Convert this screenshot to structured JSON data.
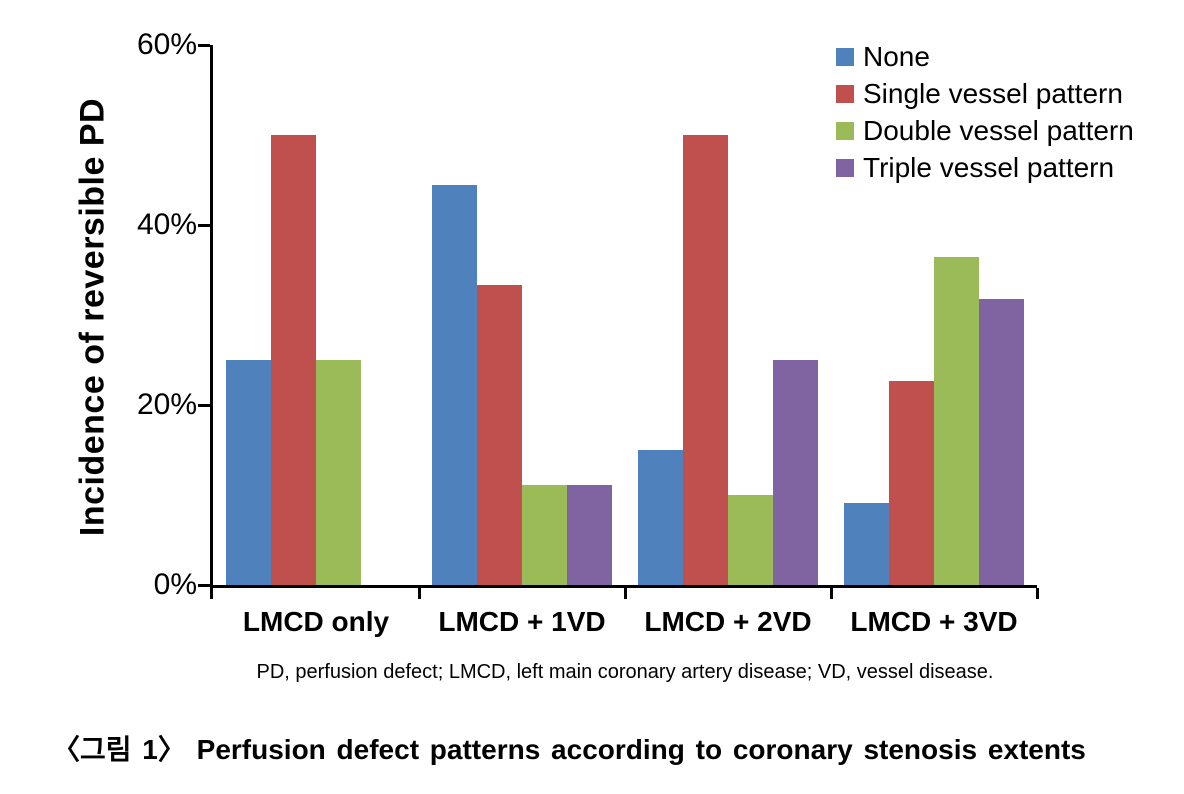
{
  "figure": {
    "footnote": "PD, perfusion defect; LMCD, left main coronary artery disease; VD, vessel disease.",
    "caption": "〈그림 1〉 Perfusion defect patterns according to coronary stenosis extents"
  },
  "chart_data": {
    "type": "bar",
    "title": "",
    "xlabel": "",
    "ylabel": "Incidence of reversible PD",
    "unit": "%",
    "ylim": [
      0,
      60
    ],
    "grid": false,
    "legend_position": "top-right",
    "yticks": [
      {
        "value": 0,
        "label": "0%"
      },
      {
        "value": 20,
        "label": "20%"
      },
      {
        "value": 40,
        "label": "40%"
      },
      {
        "value": 60,
        "label": "60%"
      }
    ],
    "categories": [
      "LMCD only",
      "LMCD + 1VD",
      "LMCD + 2VD",
      "LMCD + 3VD"
    ],
    "series": [
      {
        "name": "None",
        "color": "#4F81BD",
        "values": [
          25,
          44.4,
          15,
          9.1
        ]
      },
      {
        "name": "Single vessel pattern",
        "color": "#C0504D",
        "values": [
          50,
          33.3,
          50,
          22.7
        ]
      },
      {
        "name": "Double vessel pattern",
        "color": "#9BBB59",
        "values": [
          25,
          11.1,
          10,
          36.4
        ]
      },
      {
        "name": "Triple vessel pattern",
        "color": "#8064A2",
        "values": [
          0,
          11.1,
          25,
          31.8
        ]
      }
    ],
    "colors": {
      "axis": "#000000",
      "background": "#FFFFFF"
    }
  }
}
